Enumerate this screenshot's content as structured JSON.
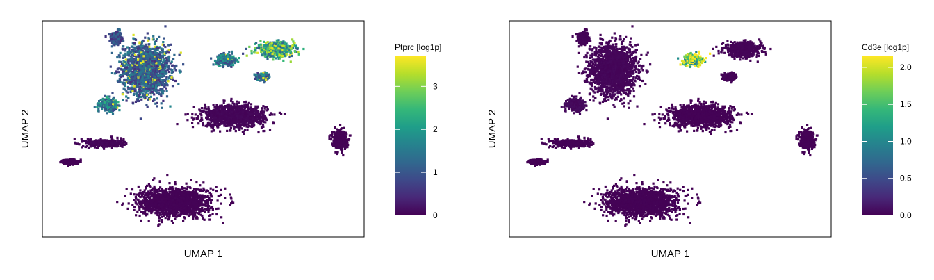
{
  "colormap": "viridis",
  "chart_data": [
    {
      "type": "scatter",
      "subtype": "umap-feature-plot",
      "title": "",
      "xlabel": "UMAP 1",
      "ylabel": "UMAP 2",
      "legend_title": "Ptprc [log1p]",
      "legend_placement": "right",
      "color_range": [
        0,
        3.7
      ],
      "legend_ticks": [
        0,
        1,
        2,
        3
      ],
      "legend_tick_labels": [
        "0",
        "1",
        "2",
        "3"
      ],
      "grid": false,
      "point_color_low": "#440154",
      "point_color_high": "#fde725",
      "clusters": [
        {
          "name": "top-left-small",
          "center": [
            -4.6,
            6.8
          ],
          "level": 0.9,
          "spread": [
            0.25,
            0.45
          ]
        },
        {
          "name": "top-left-large",
          "center": [
            -3.0,
            4.6
          ],
          "level": 1.1,
          "spread": [
            1.1,
            1.6
          ]
        },
        {
          "name": "top-middle-arc",
          "center": [
            1.2,
            5.3
          ],
          "level": 1.5,
          "spread": [
            0.45,
            0.35
          ]
        },
        {
          "name": "top-right-branch",
          "center": [
            3.8,
            6.0
          ],
          "level": 2.2,
          "spread": [
            0.9,
            0.45
          ]
        },
        {
          "name": "right-upper-lobe",
          "center": [
            3.2,
            4.1
          ],
          "level": 1.3,
          "spread": [
            0.3,
            0.2
          ]
        },
        {
          "name": "left-islands",
          "center": [
            -5.0,
            2.2
          ],
          "level": 1.6,
          "spread": [
            0.4,
            0.35
          ]
        },
        {
          "name": "center-right",
          "center": [
            1.6,
            1.4
          ],
          "level": 0.05,
          "spread": [
            1.5,
            0.7
          ]
        },
        {
          "name": "left-middle",
          "center": [
            -5.2,
            -0.5
          ],
          "level": 0.05,
          "spread": [
            0.9,
            0.25
          ]
        },
        {
          "name": "far-left",
          "center": [
            -7.0,
            -1.8
          ],
          "level": 0.02,
          "spread": [
            0.35,
            0.15
          ]
        },
        {
          "name": "far-right",
          "center": [
            7.2,
            -0.2
          ],
          "level": 0.02,
          "spread": [
            0.35,
            0.6
          ]
        },
        {
          "name": "bottom-large",
          "center": [
            -1.5,
            -4.6
          ],
          "level": 0.02,
          "spread": [
            1.7,
            0.9
          ]
        }
      ]
    },
    {
      "type": "scatter",
      "subtype": "umap-feature-plot",
      "title": "",
      "xlabel": "UMAP 1",
      "ylabel": "UMAP 2",
      "legend_title": "Cd3e [log1p]",
      "legend_placement": "right",
      "color_range": [
        0,
        2.15
      ],
      "legend_ticks": [
        0,
        0.5,
        1,
        1.5,
        2
      ],
      "legend_tick_labels": [
        "0.0",
        "0.5",
        "1.0",
        "1.5",
        "2.0"
      ],
      "grid": false,
      "point_color_low": "#440154",
      "point_color_high": "#fde725",
      "clusters": [
        {
          "name": "top-left-small",
          "center": [
            -4.6,
            6.8
          ],
          "level": 0.02,
          "spread": [
            0.25,
            0.45
          ]
        },
        {
          "name": "top-left-large",
          "center": [
            -3.0,
            4.6
          ],
          "level": 0.03,
          "spread": [
            1.1,
            1.6
          ]
        },
        {
          "name": "top-middle-arc",
          "center": [
            1.2,
            5.3
          ],
          "level": 1.7,
          "spread": [
            0.45,
            0.35
          ]
        },
        {
          "name": "top-right-branch",
          "center": [
            3.8,
            6.0
          ],
          "level": 0.02,
          "spread": [
            0.9,
            0.45
          ]
        },
        {
          "name": "right-upper-lobe",
          "center": [
            3.2,
            4.1
          ],
          "level": 0.02,
          "spread": [
            0.3,
            0.2
          ]
        },
        {
          "name": "left-islands",
          "center": [
            -5.0,
            2.2
          ],
          "level": 0.05,
          "spread": [
            0.4,
            0.35
          ]
        },
        {
          "name": "center-right",
          "center": [
            1.6,
            1.4
          ],
          "level": 0.01,
          "spread": [
            1.5,
            0.7
          ]
        },
        {
          "name": "left-middle",
          "center": [
            -5.2,
            -0.5
          ],
          "level": 0.01,
          "spread": [
            0.9,
            0.25
          ]
        },
        {
          "name": "far-left",
          "center": [
            -7.0,
            -1.8
          ],
          "level": 0.01,
          "spread": [
            0.35,
            0.15
          ]
        },
        {
          "name": "far-right",
          "center": [
            7.2,
            -0.2
          ],
          "level": 0.01,
          "spread": [
            0.35,
            0.6
          ]
        },
        {
          "name": "bottom-large",
          "center": [
            -1.5,
            -4.6
          ],
          "level": 0.01,
          "spread": [
            1.7,
            0.9
          ]
        }
      ]
    }
  ]
}
